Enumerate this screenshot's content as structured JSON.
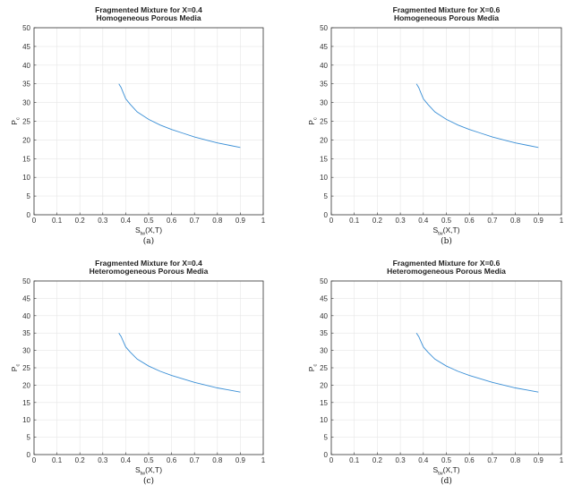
{
  "colors": {
    "series": "#3a8fd6",
    "axis": "#333333",
    "grid": "#e6e6e6"
  },
  "chart_data": [
    {
      "type": "line",
      "caption": "(a)",
      "title": [
        "Fragmented Mixture for X=0.4",
        "Homogeneous Porous Media"
      ],
      "xlabel": {
        "main": "S",
        "sub": "tw",
        "tail": "(X,T)"
      },
      "ylabel": {
        "main": "P",
        "sub": "c"
      },
      "xlim": [
        0,
        1
      ],
      "ylim": [
        0,
        50
      ],
      "xticks": [
        "0",
        "0.1",
        "0.2",
        "0.3",
        "0.4",
        "0.5",
        "0.6",
        "0.7",
        "0.8",
        "0.9",
        "1"
      ],
      "yticks": [
        "0",
        "5",
        "10",
        "15",
        "20",
        "25",
        "30",
        "35",
        "40",
        "45",
        "50"
      ],
      "grid": true,
      "series": [
        {
          "x": [
            0.37,
            0.38,
            0.39,
            0.4,
            0.42,
            0.45,
            0.5,
            0.55,
            0.6,
            0.65,
            0.7,
            0.75,
            0.8,
            0.85,
            0.9
          ],
          "y": [
            35.0,
            34.0,
            32.5,
            31.0,
            29.5,
            27.5,
            25.5,
            24.0,
            22.8,
            21.8,
            20.8,
            20.0,
            19.2,
            18.6,
            18.0
          ]
        }
      ]
    },
    {
      "type": "line",
      "caption": "(b)",
      "title": [
        "Fragmented Mixture for X=0.6",
        "Homogeneous Porous Media"
      ],
      "xlabel": {
        "main": "S",
        "sub": "tw",
        "tail": "(X,T)"
      },
      "ylabel": {
        "main": "P",
        "sub": "c"
      },
      "xlim": [
        0,
        1
      ],
      "ylim": [
        0,
        50
      ],
      "xticks": [
        "0",
        "0.1",
        "0.2",
        "0.3",
        "0.4",
        "0.5",
        "0.6",
        "0.7",
        "0.8",
        "0.9",
        "1"
      ],
      "yticks": [
        "0",
        "5",
        "10",
        "15",
        "20",
        "25",
        "30",
        "35",
        "40",
        "45",
        "50"
      ],
      "grid": true,
      "series": [
        {
          "x": [
            0.37,
            0.38,
            0.39,
            0.4,
            0.42,
            0.45,
            0.5,
            0.55,
            0.6,
            0.65,
            0.7,
            0.75,
            0.8,
            0.85,
            0.9
          ],
          "y": [
            35.0,
            34.0,
            32.5,
            31.0,
            29.5,
            27.5,
            25.5,
            24.0,
            22.8,
            21.8,
            20.8,
            20.0,
            19.2,
            18.6,
            18.0
          ]
        }
      ]
    },
    {
      "type": "line",
      "caption": "(c)",
      "title": [
        "Fragmented Mixture for X=0.4",
        "Heteromogeneous Porous Media"
      ],
      "xlabel": {
        "main": "S",
        "sub": "tw",
        "tail": "(X,T)"
      },
      "ylabel": {
        "main": "P",
        "sub": "c"
      },
      "xlim": [
        0,
        1
      ],
      "ylim": [
        0,
        50
      ],
      "xticks": [
        "0",
        "0.1",
        "0.2",
        "0.3",
        "0.4",
        "0.5",
        "0.6",
        "0.7",
        "0.8",
        "0.9",
        "1"
      ],
      "yticks": [
        "0",
        "5",
        "10",
        "15",
        "20",
        "25",
        "30",
        "35",
        "40",
        "45",
        "50"
      ],
      "grid": true,
      "series": [
        {
          "x": [
            0.37,
            0.38,
            0.39,
            0.4,
            0.42,
            0.45,
            0.5,
            0.55,
            0.6,
            0.65,
            0.7,
            0.75,
            0.8,
            0.85,
            0.9
          ],
          "y": [
            35.0,
            34.0,
            32.5,
            31.0,
            29.5,
            27.5,
            25.5,
            24.0,
            22.8,
            21.8,
            20.8,
            20.0,
            19.2,
            18.6,
            18.0
          ]
        }
      ]
    },
    {
      "type": "line",
      "caption": "(d)",
      "title": [
        "Fragmented Mixture for X=0.6",
        "Heteromogeneous Porous Media"
      ],
      "xlabel": {
        "main": "S",
        "sub": "tw",
        "tail": "(X,T)"
      },
      "ylabel": {
        "main": "P",
        "sub": "c"
      },
      "xlim": [
        0,
        1
      ],
      "ylim": [
        0,
        50
      ],
      "xticks": [
        "0",
        "0.1",
        "0.2",
        "0.3",
        "0.4",
        "0.5",
        "0.6",
        "0.7",
        "0.8",
        "0.9",
        "1"
      ],
      "yticks": [
        "0",
        "5",
        "10",
        "15",
        "20",
        "25",
        "30",
        "35",
        "40",
        "45",
        "50"
      ],
      "grid": true,
      "series": [
        {
          "x": [
            0.37,
            0.38,
            0.39,
            0.4,
            0.42,
            0.45,
            0.5,
            0.55,
            0.6,
            0.65,
            0.7,
            0.75,
            0.8,
            0.85,
            0.9
          ],
          "y": [
            35.0,
            34.0,
            32.5,
            31.0,
            29.5,
            27.5,
            25.5,
            24.0,
            22.8,
            21.8,
            20.8,
            20.0,
            19.2,
            18.6,
            18.0
          ]
        }
      ]
    }
  ]
}
